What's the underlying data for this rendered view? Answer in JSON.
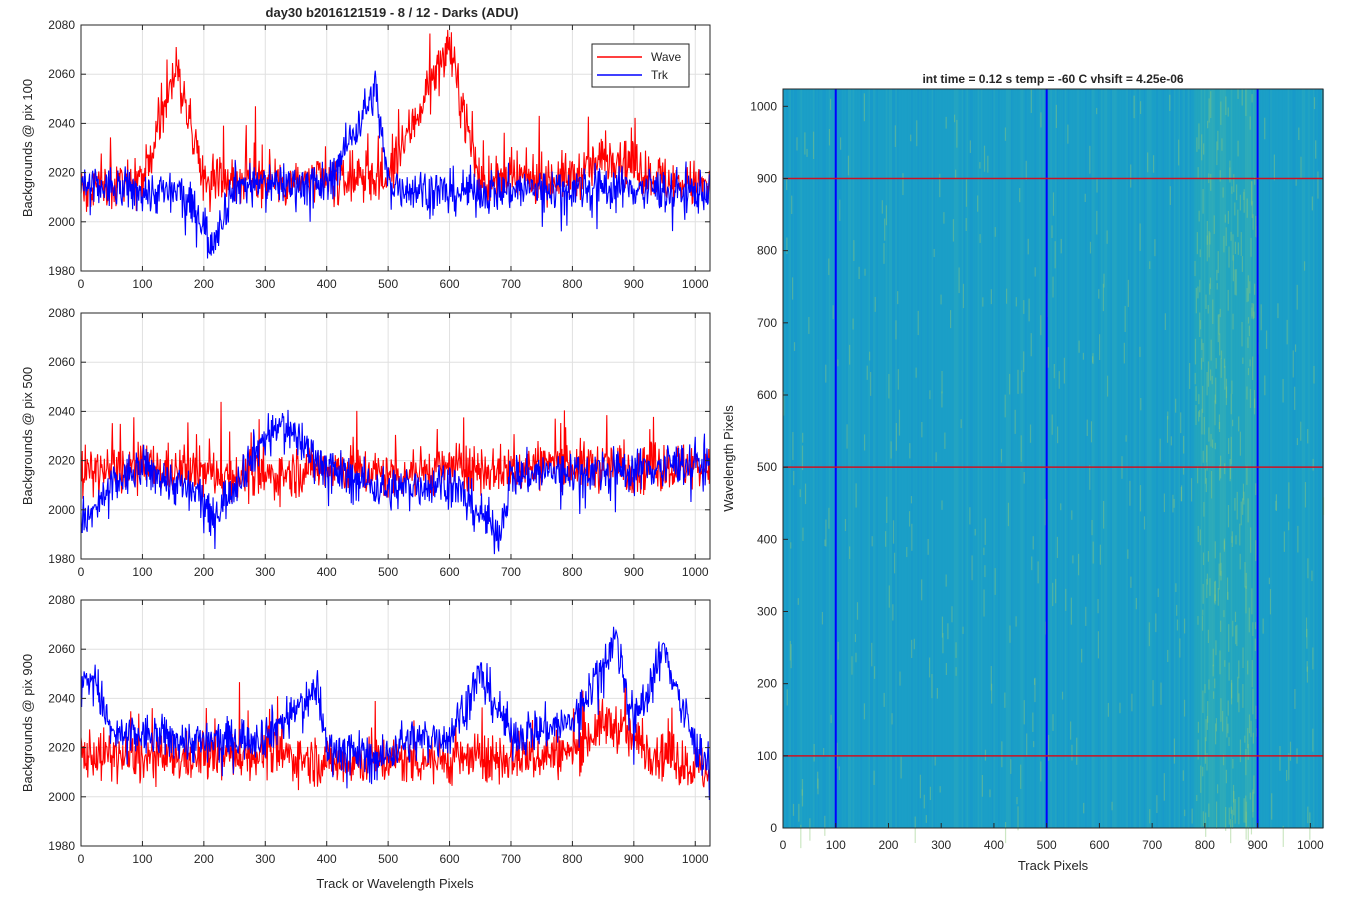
{
  "figure": {
    "title": "day30 b2016121519 - 8 / 12 - Darks (ADU)",
    "shared_xlabel": "Track or Wavelength Pixels"
  },
  "colors": {
    "wave": "#ff0000",
    "trk": "#0000ff",
    "grid": "#e0e0e0",
    "axis": "#262626",
    "image_base": "#1aa0c8"
  },
  "legend": {
    "location": "top-right",
    "entries": [
      "Wave",
      "Trk"
    ]
  },
  "chart_data": [
    {
      "type": "line",
      "ylabel": "Backgrounds @ pix 100",
      "xlim": [
        0,
        1024
      ],
      "ylim": [
        1980,
        2080
      ],
      "xticks": [
        0,
        100,
        200,
        300,
        400,
        500,
        600,
        700,
        800,
        900,
        1000
      ],
      "yticks": [
        1980,
        2000,
        2020,
        2040,
        2060,
        2080
      ],
      "grid": true,
      "series": [
        {
          "name": "Wave",
          "x": [
            0,
            100,
            155,
            200,
            300,
            400,
            500,
            598,
            650,
            700,
            800,
            870,
            900,
            960,
            1000,
            1024
          ],
          "values": [
            2012,
            2015,
            2063,
            2018,
            2017,
            2016,
            2017,
            2072,
            2016,
            2017,
            2018,
            2028,
            2022,
            2016,
            2015,
            2014
          ]
        },
        {
          "name": "Trk",
          "x": [
            0,
            100,
            160,
            200,
            210,
            250,
            300,
            400,
            480,
            500,
            600,
            700,
            800,
            900,
            1000,
            1024
          ],
          "values": [
            2015,
            2012,
            2012,
            2000,
            1990,
            2015,
            2016,
            2015,
            2054,
            2015,
            2012,
            2013,
            2014,
            2014,
            2012,
            2013
          ]
        }
      ]
    },
    {
      "type": "line",
      "ylabel": "Backgrounds @ pix 500",
      "xlim": [
        0,
        1024
      ],
      "ylim": [
        1980,
        2080
      ],
      "xticks": [
        0,
        100,
        200,
        300,
        400,
        500,
        600,
        700,
        800,
        900,
        1000
      ],
      "yticks": [
        1980,
        2000,
        2020,
        2040,
        2060,
        2080
      ],
      "grid": true,
      "series": [
        {
          "name": "Wave",
          "x": [
            0,
            100,
            200,
            300,
            400,
            500,
            600,
            700,
            780,
            800,
            900,
            1000,
            1024
          ],
          "values": [
            2015,
            2017,
            2015,
            2013,
            2018,
            2014,
            2017,
            2016,
            2020,
            2018,
            2017,
            2018,
            2015
          ]
        },
        {
          "name": "Trk",
          "x": [
            0,
            10,
            50,
            100,
            200,
            210,
            300,
            330,
            400,
            500,
            600,
            680,
            700,
            800,
            900,
            1000,
            1024
          ],
          "values": [
            1998,
            1995,
            2010,
            2017,
            2005,
            1995,
            2030,
            2035,
            2017,
            2008,
            2012,
            1990,
            2014,
            2016,
            2016,
            2020,
            2018
          ]
        }
      ]
    },
    {
      "type": "line",
      "ylabel": "Backgrounds @ pix 900",
      "xlim": [
        0,
        1024
      ],
      "ylim": [
        1980,
        2080
      ],
      "xticks": [
        0,
        100,
        200,
        300,
        400,
        500,
        600,
        700,
        800,
        900,
        1000
      ],
      "yticks": [
        1980,
        2000,
        2020,
        2040,
        2060,
        2080
      ],
      "grid": true,
      "series": [
        {
          "name": "Wave",
          "x": [
            0,
            100,
            200,
            300,
            400,
            500,
            600,
            700,
            800,
            850,
            880,
            900,
            1000,
            1024
          ],
          "values": [
            2018,
            2015,
            2016,
            2018,
            2014,
            2015,
            2015,
            2016,
            2018,
            2030,
            2028,
            2022,
            2012,
            2010
          ]
        },
        {
          "name": "Trk",
          "x": [
            0,
            20,
            50,
            100,
            200,
            300,
            370,
            385,
            400,
            450,
            490,
            520,
            600,
            650,
            700,
            800,
            870,
            900,
            950,
            1000,
            1024
          ],
          "values": [
            2045,
            2050,
            2025,
            2025,
            2022,
            2025,
            2040,
            2045,
            2020,
            2018,
            2015,
            2022,
            2025,
            2050,
            2025,
            2030,
            2065,
            2030,
            2060,
            2020,
            2015
          ]
        }
      ]
    },
    {
      "type": "heatmap",
      "title": "int time = 0.12 s    temp = -60 C    vhsift = 4.25e-06",
      "xlabel": "Track Pixels",
      "ylabel": "Wavelength Pixels",
      "xlim": [
        0,
        1024
      ],
      "ylim": [
        0,
        1024
      ],
      "xticks": [
        0,
        100,
        200,
        300,
        400,
        500,
        600,
        700,
        800,
        900,
        1000
      ],
      "yticks": [
        0,
        100,
        200,
        300,
        400,
        500,
        600,
        700,
        800,
        900,
        1000
      ],
      "vertical_lines_x": [
        100,
        500,
        900
      ],
      "horizontal_lines_y": [
        100,
        500,
        900
      ],
      "bright_region_x": [
        780,
        900
      ]
    }
  ]
}
